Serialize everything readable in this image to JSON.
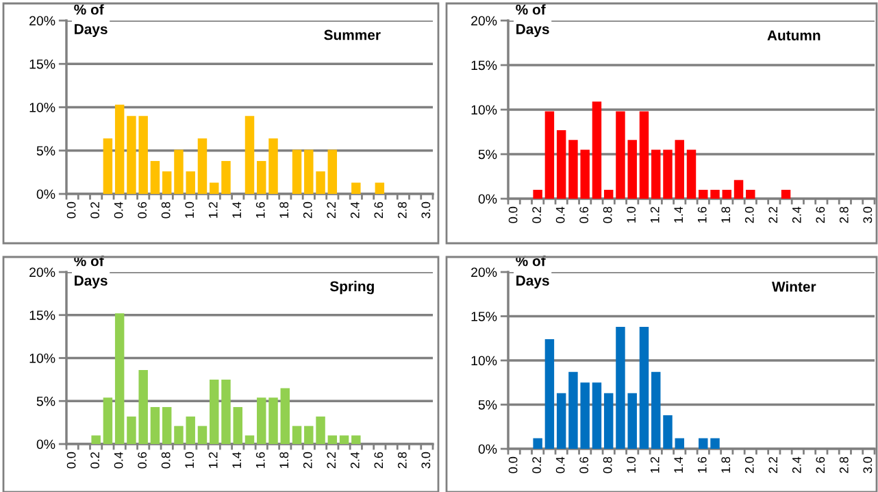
{
  "chart_data": [
    {
      "type": "bar",
      "title": "Summer",
      "ylabel": "% of\nDays",
      "color": "#ffc000",
      "grid": "y",
      "ylim": [
        0,
        20
      ],
      "yticks": [
        {
          "value": 0,
          "label": "0%"
        },
        {
          "value": 5,
          "label": "5%"
        },
        {
          "value": 10,
          "label": "10%"
        },
        {
          "value": 15,
          "label": "15%"
        },
        {
          "value": 20,
          "label": "20%"
        }
      ],
      "categories": [
        "0.0",
        null,
        "0.2",
        null,
        "0.4",
        null,
        "0.6",
        null,
        "0.8",
        null,
        "1.0",
        null,
        "1.2",
        null,
        "1.4",
        null,
        "1.6",
        null,
        "1.8",
        null,
        "2.0",
        null,
        "2.2",
        null,
        "2.4",
        null,
        "2.6",
        null,
        "2.8",
        null,
        "3.0"
      ],
      "values": [
        0,
        0,
        0,
        6.4,
        10.3,
        9.0,
        9.0,
        3.8,
        2.6,
        5.1,
        2.6,
        6.4,
        1.3,
        3.8,
        0,
        9.0,
        3.8,
        6.4,
        0,
        5.1,
        5.1,
        2.6,
        5.1,
        0,
        1.3,
        0,
        1.3,
        0,
        0,
        0,
        0
      ]
    },
    {
      "type": "bar",
      "title": "Autumn",
      "ylabel": "% of\nDays",
      "color": "#ff0000",
      "grid": "y",
      "ylim": [
        0,
        20
      ],
      "yticks": [
        {
          "value": 0,
          "label": "0%"
        },
        {
          "value": 5,
          "label": "5%"
        },
        {
          "value": 10,
          "label": "10%"
        },
        {
          "value": 15,
          "label": "15%"
        },
        {
          "value": 20,
          "label": "20%"
        }
      ],
      "categories": [
        "0.0",
        null,
        "0.2",
        null,
        "0.4",
        null,
        "0.6",
        null,
        "0.8",
        null,
        "1.0",
        null,
        "1.2",
        null,
        "1.4",
        null,
        "1.6",
        null,
        "1.8",
        null,
        "2.0",
        null,
        "2.2",
        null,
        "2.4",
        null,
        "2.6",
        null,
        "2.8",
        null,
        "3.0"
      ],
      "values": [
        0,
        0,
        1.0,
        9.8,
        7.7,
        6.6,
        5.5,
        10.9,
        1.0,
        9.8,
        6.6,
        9.8,
        5.5,
        5.5,
        6.6,
        5.5,
        1.0,
        1.0,
        1.0,
        2.1,
        1.0,
        0,
        0,
        1.0,
        0,
        0,
        0,
        0,
        0,
        0,
        0
      ]
    },
    {
      "type": "bar",
      "title": "Spring",
      "ylabel": "% of\nDays",
      "color": "#92d050",
      "grid": "y",
      "ylim": [
        0,
        20
      ],
      "yticks": [
        {
          "value": 0,
          "label": "0%"
        },
        {
          "value": 5,
          "label": "5%"
        },
        {
          "value": 10,
          "label": "10%"
        },
        {
          "value": 15,
          "label": "15%"
        },
        {
          "value": 20,
          "label": "20%"
        }
      ],
      "categories": [
        "0.0",
        null,
        "0.2",
        null,
        "0.4",
        null,
        "0.6",
        null,
        "0.8",
        null,
        "1.0",
        null,
        "1.2",
        null,
        "1.4",
        null,
        "1.6",
        null,
        "1.8",
        null,
        "2.0",
        null,
        "2.2",
        null,
        "2.4",
        null,
        "2.6",
        null,
        "2.8",
        null,
        "3.0"
      ],
      "values": [
        0,
        0,
        1.0,
        5.4,
        15.2,
        3.2,
        8.6,
        4.3,
        4.3,
        2.1,
        3.2,
        2.1,
        7.5,
        7.5,
        4.3,
        1.0,
        5.4,
        5.4,
        6.5,
        2.1,
        2.1,
        3.2,
        1.0,
        1.0,
        1.0,
        0,
        0,
        0,
        0,
        0,
        0
      ]
    },
    {
      "type": "bar",
      "title": "Winter",
      "ylabel": "% of\nDays",
      "color": "#0070c0",
      "grid": "y",
      "ylim": [
        0,
        20
      ],
      "yticks": [
        {
          "value": 0,
          "label": "0%"
        },
        {
          "value": 5,
          "label": "5%"
        },
        {
          "value": 10,
          "label": "10%"
        },
        {
          "value": 15,
          "label": "15%"
        },
        {
          "value": 20,
          "label": "20%"
        }
      ],
      "categories": [
        "0.0",
        null,
        "0.2",
        null,
        "0.4",
        null,
        "0.6",
        null,
        "0.8",
        null,
        "1.0",
        null,
        "1.2",
        null,
        "1.4",
        null,
        "1.6",
        null,
        "1.8",
        null,
        "2.0",
        null,
        "2.2",
        null,
        "2.4",
        null,
        "2.6",
        null,
        "2.8",
        null,
        "3.0"
      ],
      "values": [
        0,
        0,
        1.2,
        12.4,
        6.3,
        8.7,
        7.5,
        7.5,
        6.3,
        13.8,
        6.3,
        13.8,
        8.7,
        3.8,
        1.2,
        0,
        1.2,
        1.2,
        0,
        0,
        0,
        0,
        0,
        0,
        0,
        0,
        0,
        0,
        0,
        0,
        0
      ]
    }
  ]
}
